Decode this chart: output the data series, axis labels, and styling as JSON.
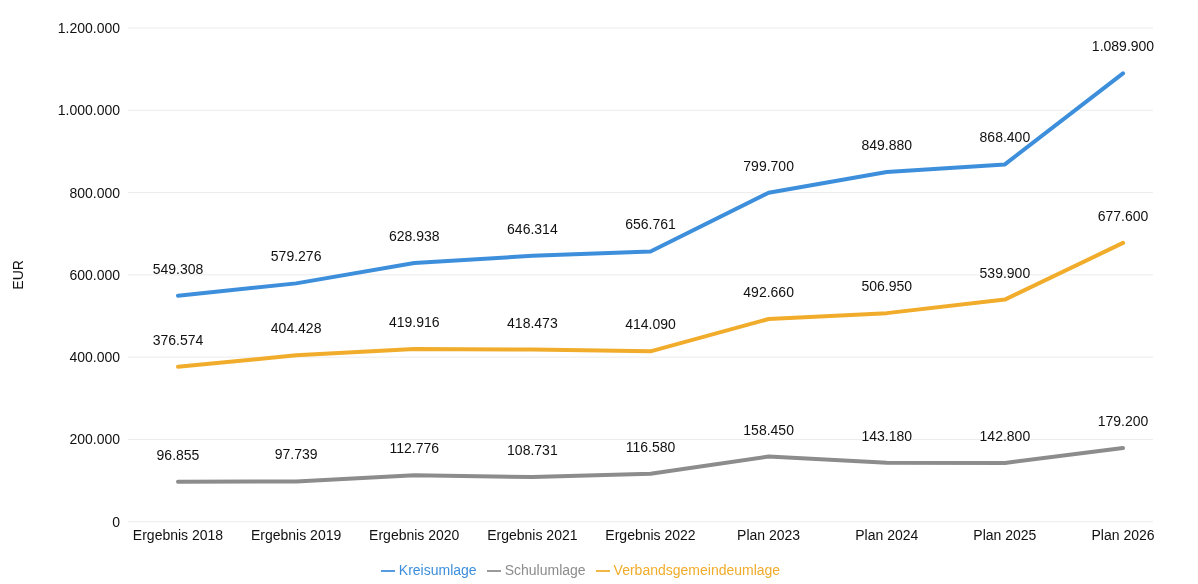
{
  "chart_data": {
    "type": "line",
    "ylabel": "EUR",
    "categories": [
      "Ergebnis 2018",
      "Ergebnis 2019",
      "Ergebnis 2020",
      "Ergebnis 2021",
      "Ergebnis 2022",
      "Plan 2023",
      "Plan 2024",
      "Plan 2025",
      "Plan 2026"
    ],
    "series": [
      {
        "name": "Kreisumlage",
        "color": "#3d8fdc",
        "values": [
          549308,
          579276,
          628938,
          646314,
          656761,
          799700,
          849880,
          868400,
          1089900
        ],
        "value_labels": [
          "549.308",
          "579.276",
          "628.938",
          "646.314",
          "656.761",
          "799.700",
          "849.880",
          "868.400",
          "1.089.900"
        ]
      },
      {
        "name": "Verbandsgemeindeumlage",
        "color": "#f0ac2a",
        "values": [
          376574,
          404428,
          419916,
          418473,
          414090,
          492660,
          506950,
          539900,
          677600
        ],
        "value_labels": [
          "376.574",
          "404.428",
          "419.916",
          "418.473",
          "414.090",
          "492.660",
          "506.950",
          "539.900",
          "677.600"
        ]
      },
      {
        "name": "Schulumlage",
        "color": "#8c8c8c",
        "values": [
          96855,
          97739,
          112776,
          108731,
          116580,
          158450,
          143180,
          142800,
          179200
        ],
        "value_labels": [
          "96.855",
          "97.739",
          "112.776",
          "108.731",
          "116.580",
          "158.450",
          "143.180",
          "142.800",
          "179.200"
        ]
      }
    ],
    "ylim": [
      0,
      1200000
    ],
    "yticks": [
      0,
      {
        "value": 200000,
        "label": "200.000"
      },
      {
        "value": 400000,
        "label": "400.000"
      },
      {
        "value": 600000,
        "label": "600.000"
      },
      {
        "value": 800000,
        "label": "800.000"
      },
      {
        "value": 1000000,
        "label": "1.000.000"
      },
      {
        "value": 1200000,
        "label": "1.200.000"
      }
    ],
    "grid": "y",
    "legend": "bottom",
    "marker": "none",
    "line_style": "solid"
  }
}
